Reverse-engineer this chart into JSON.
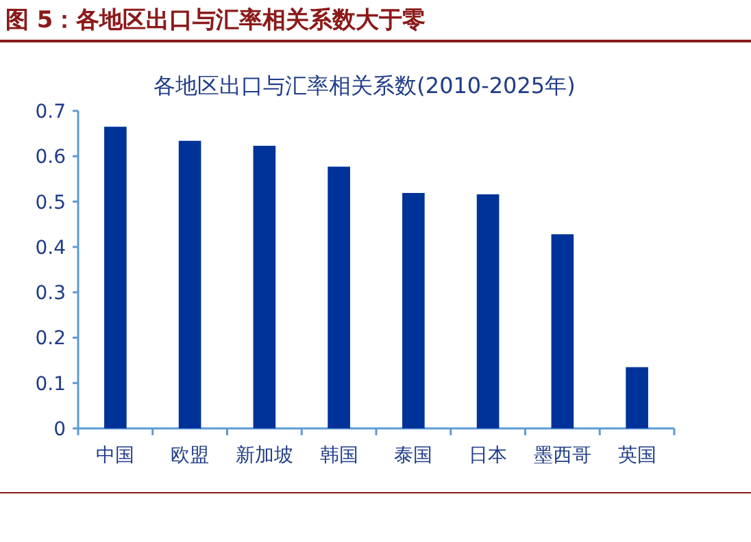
{
  "chart_data": {
    "type": "bar",
    "title": "图 5：各地区出口与汇率相关系数大于零",
    "subtitle": "各地区出口与汇率相关系数(2010-2025年)",
    "categories": [
      "中国",
      "欧盟",
      "新加坡",
      "韩国",
      "泰国",
      "日本",
      "墨西哥",
      "英国"
    ],
    "values": [
      0.665,
      0.634,
      0.623,
      0.577,
      0.519,
      0.516,
      0.428,
      0.135
    ],
    "color": "#003399",
    "ylim": [
      0,
      0.7
    ],
    "yticks": [
      0,
      0.1,
      0.2,
      0.3,
      0.4,
      0.5,
      0.6,
      0.7
    ]
  }
}
